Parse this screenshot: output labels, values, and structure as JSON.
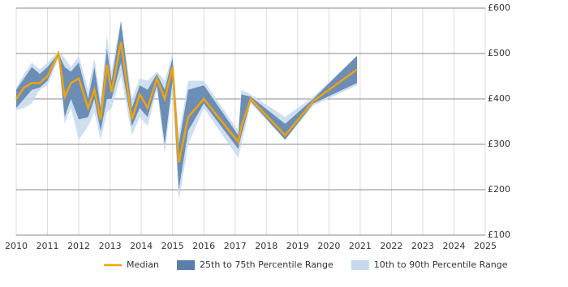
{
  "chart_data": {
    "type": "band-line",
    "x": [
      2010.0,
      2010.25,
      2010.5,
      2010.75,
      2011.0,
      2011.35,
      2011.55,
      2011.75,
      2012.0,
      2012.3,
      2012.5,
      2012.7,
      2012.9,
      2013.05,
      2013.35,
      2013.7,
      2013.95,
      2014.2,
      2014.5,
      2014.75,
      2015.0,
      2015.2,
      2015.5,
      2016.0,
      2017.1,
      2017.2,
      2017.5,
      2018.6,
      2019.5,
      2020.9
    ],
    "series": [
      {
        "name": "Median",
        "color": "#f0a30a",
        "kind": "line",
        "values": [
          400,
          425,
          435,
          435,
          450,
          500,
          405,
          435,
          445,
          380,
          420,
          355,
          475,
          415,
          525,
          355,
          410,
          380,
          445,
          400,
          470,
          260,
          360,
          400,
          305,
          340,
          400,
          320,
          395,
          465
        ]
      },
      {
        "name": "25th to 75th Percentile Range",
        "color": "#5b7fac",
        "kind": "band",
        "low": [
          380,
          400,
          420,
          425,
          440,
          495,
          360,
          400,
          355,
          360,
          400,
          330,
          400,
          400,
          480,
          340,
          380,
          360,
          430,
          300,
          440,
          200,
          330,
          390,
          290,
          320,
          395,
          310,
          390,
          435
        ],
        "high": [
          420,
          445,
          470,
          455,
          470,
          500,
          470,
          460,
          480,
          400,
          470,
          380,
          510,
          440,
          570,
          380,
          430,
          420,
          455,
          420,
          490,
          300,
          420,
          430,
          320,
          410,
          405,
          345,
          400,
          495
        ]
      },
      {
        "name": "10th to 90th Percentile Range",
        "color": "#c6d9ec",
        "kind": "band",
        "low": [
          375,
          380,
          390,
          420,
          430,
          490,
          345,
          380,
          310,
          340,
          370,
          310,
          370,
          380,
          450,
          320,
          360,
          340,
          420,
          280,
          420,
          175,
          300,
          380,
          270,
          300,
          390,
          310,
          385,
          430
        ],
        "high": [
          425,
          455,
          480,
          465,
          480,
          505,
          490,
          470,
          495,
          420,
          490,
          400,
          540,
          460,
          575,
          400,
          445,
          440,
          460,
          440,
          500,
          320,
          440,
          440,
          330,
          420,
          410,
          360,
          405,
          495
        ]
      }
    ],
    "xlim": [
      2010,
      2025
    ],
    "xticks": [
      2010,
      2011,
      2012,
      2013,
      2014,
      2015,
      2016,
      2017,
      2018,
      2019,
      2020,
      2021,
      2022,
      2023,
      2024,
      2025
    ],
    "ylim": [
      100,
      600
    ],
    "yticks": [
      {
        "value": 100,
        "label": "£100"
      },
      {
        "value": 200,
        "label": "£200"
      },
      {
        "value": 300,
        "label": "£300"
      },
      {
        "value": 400,
        "label": "£400"
      },
      {
        "value": 500,
        "label": "£500"
      },
      {
        "value": 600,
        "label": "£600"
      }
    ],
    "grid": true,
    "legend": "bottom"
  }
}
